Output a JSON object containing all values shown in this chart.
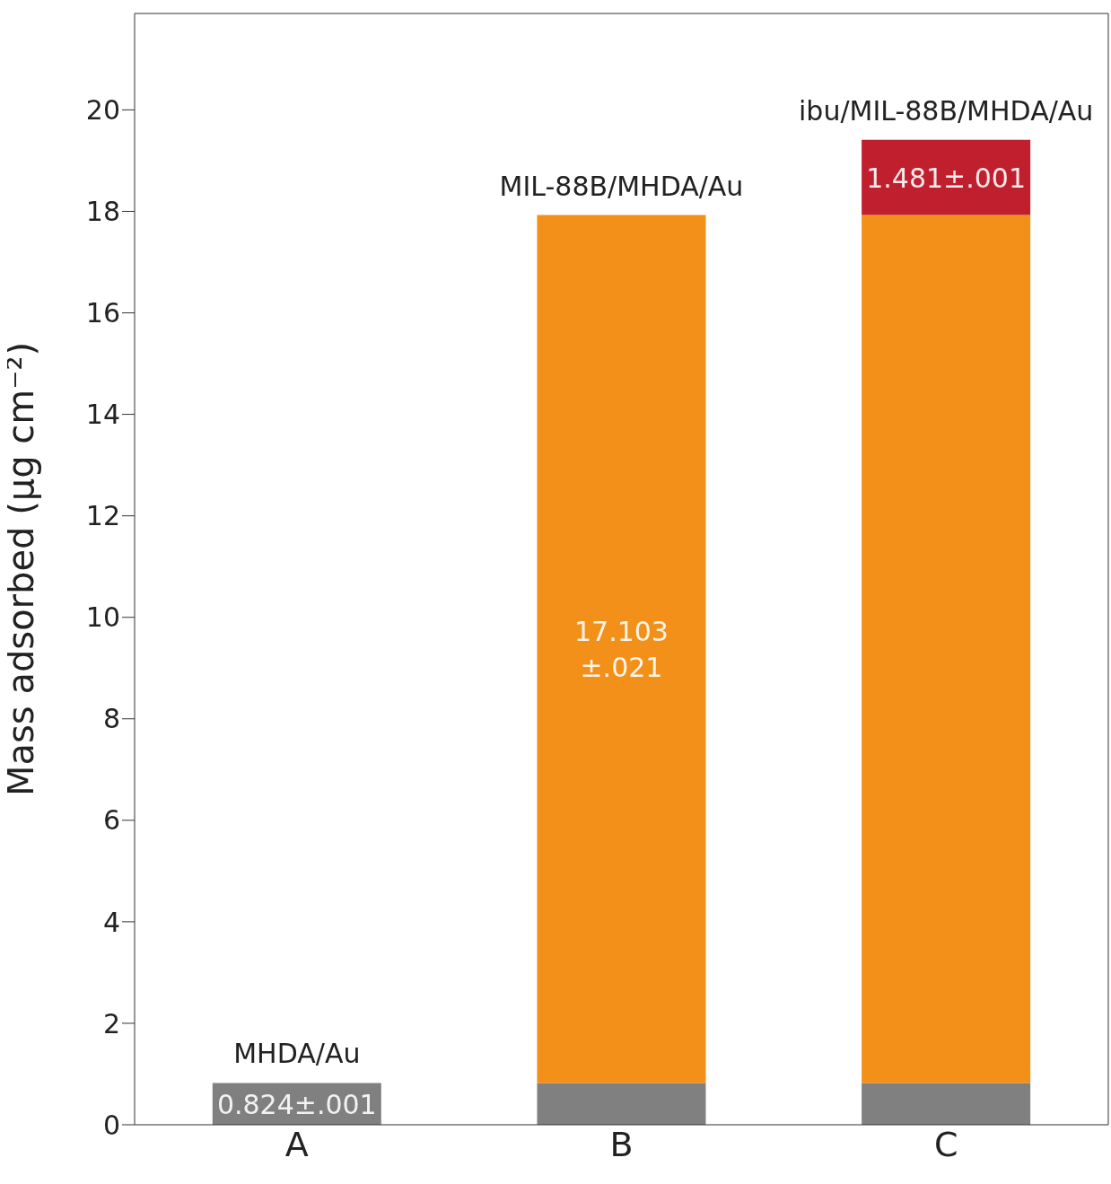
{
  "chart_data": {
    "type": "bar",
    "stacked": true,
    "ylabel": "Mass adsorbed (μg cm⁻²)",
    "categories": [
      "A",
      "B",
      "C"
    ],
    "series": [
      {
        "color": "#808080",
        "values": [
          0.824,
          0.824,
          0.824
        ],
        "value_labels": [
          "0.824±.001",
          null,
          null
        ]
      },
      {
        "color": "#f2901a",
        "values": [
          null,
          17.103,
          17.103
        ],
        "value_labels": [
          null,
          "17.103\n±.021",
          null
        ]
      },
      {
        "color": "#c01f2e",
        "values": [
          null,
          null,
          1.481
        ],
        "value_labels": [
          null,
          null,
          "1.481±.001"
        ]
      }
    ],
    "annotations": [
      {
        "text": "MHDA/Au",
        "x": "A",
        "y": 0.824
      },
      {
        "text": "MIL-88B/MHDA/Au",
        "x": "B",
        "y": 17.927
      },
      {
        "text": "ibu/MIL-88B/MHDA/Au",
        "x": "C",
        "y": 19.408
      }
    ],
    "ylim": [
      0,
      21.9
    ],
    "yticks": [
      0,
      2,
      4,
      6,
      8,
      10,
      12,
      14,
      16,
      18,
      20
    ],
    "grid": false,
    "legend": false
  }
}
